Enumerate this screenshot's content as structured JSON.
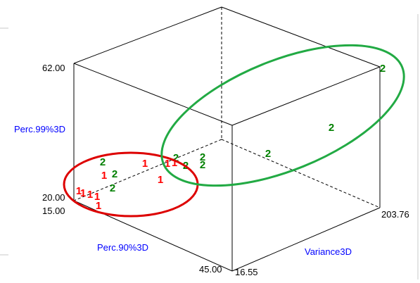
{
  "chart_data": {
    "type": "scatter",
    "projection": "3d",
    "axes": {
      "z": {
        "label": "Perc.99%3D",
        "range": [
          20.0,
          62.0
        ],
        "tick_labels": [
          "20.00",
          "62.00"
        ]
      },
      "x": {
        "label": "Perc.90%3D",
        "range": [
          15.0,
          45.0
        ],
        "tick_labels": [
          "15.00",
          "45.00"
        ]
      },
      "y": {
        "label": "Variance3D",
        "range": [
          16.55,
          203.76
        ],
        "tick_labels": [
          "16.55",
          "203.76"
        ]
      }
    },
    "point_markers": [
      "1",
      "2"
    ],
    "colors": {
      "class_1": "#ff0000",
      "class_2": "#008000",
      "axis_label": "#0000ff",
      "box": "#000000"
    },
    "annotations": [
      {
        "shape": "ellipse",
        "color": "#dd0000",
        "encloses": "1"
      },
      {
        "shape": "ellipse",
        "color": "#22aa44",
        "encloses": "2"
      }
    ]
  }
}
